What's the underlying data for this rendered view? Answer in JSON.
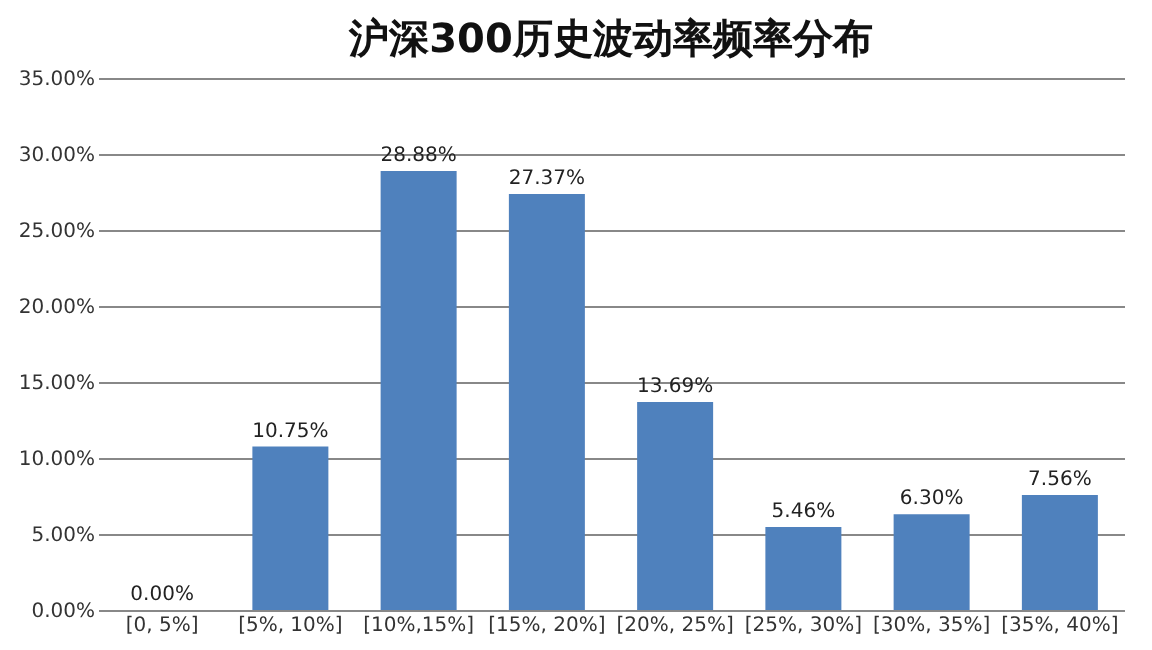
{
  "chart_data": {
    "type": "bar",
    "title": "沪深300历史波动率频率分布",
    "categories": [
      "[0, 5%]",
      "[5%, 10%]",
      "[10%,15%]",
      "[15%, 20%]",
      "[20%, 25%]",
      "[25%, 30%]",
      "[30%, 35%]",
      "[35%, 40%]"
    ],
    "values": [
      0,
      10.75,
      28.88,
      27.37,
      13.69,
      5.46,
      6.3,
      7.56
    ],
    "value_labels": [
      "0.00%",
      "10.75%",
      "28.88%",
      "27.37%",
      "13.69%",
      "5.46%",
      "6.30%",
      "7.56%"
    ],
    "color": "#4f81bd",
    "ylim": [
      0,
      35
    ],
    "yticks": [
      {
        "value": 0,
        "label": "0.00%"
      },
      {
        "value": 5,
        "label": "5.00%"
      },
      {
        "value": 10,
        "label": "10.00%"
      },
      {
        "value": 15,
        "label": "15.00%"
      },
      {
        "value": 20,
        "label": "20.00%"
      },
      {
        "value": 25,
        "label": "25.00%"
      },
      {
        "value": 30,
        "label": "30.00%"
      },
      {
        "value": 35,
        "label": "35.00%"
      }
    ],
    "grid": "y"
  }
}
